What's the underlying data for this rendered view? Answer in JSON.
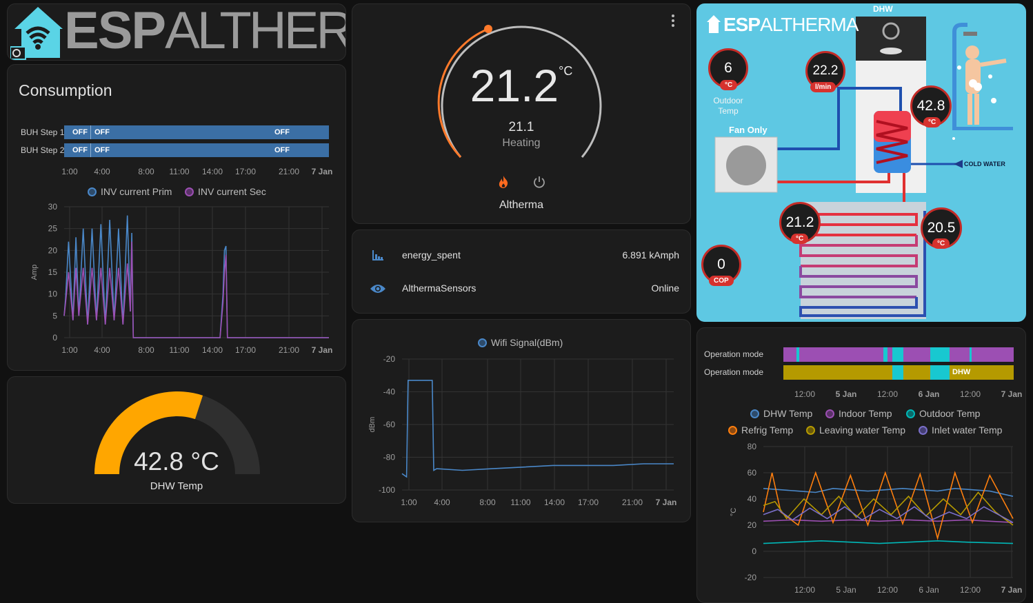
{
  "logo": {
    "text_bold": "ESP",
    "text_light": "ALTHERMA"
  },
  "consumption": {
    "title": "Consumption",
    "timeline": [
      {
        "label": "BUH Step 1",
        "states": [
          "OFF",
          "OFF",
          "OFF"
        ]
      },
      {
        "label": "BUH Step 2",
        "states": [
          "OFF",
          "OFF",
          "OFF"
        ]
      }
    ],
    "timeline_ticks": [
      "1:00",
      "4:00",
      "8:00",
      "11:00",
      "14:00",
      "17:00",
      "21:00",
      "7 Jan"
    ],
    "legend": [
      "INV current Prim",
      "INV current Sec"
    ],
    "colors": {
      "prim": "#4a88c9",
      "sec": "#9c4fb3"
    }
  },
  "thermostat": {
    "current": "21.2",
    "unit": "°C",
    "target": "21.1",
    "action": "Heating",
    "name": "Altherma",
    "menu_icon": "dots-vertical-icon",
    "mode_icons": [
      "fire-icon",
      "power-icon"
    ]
  },
  "entities": [
    {
      "icon": "chart-bar-icon",
      "name": "energy_spent",
      "value": "6.891 kAmph"
    },
    {
      "icon": "eye-icon",
      "name": "AlthermaSensors",
      "value": "Online"
    }
  ],
  "wifi": {
    "legend": "Wifi Signal(dBm)"
  },
  "gauge": {
    "value": "42.8 °C",
    "name": "DHW Temp",
    "fraction": 0.6,
    "color": "#ffa600"
  },
  "schematic": {
    "dhw_label": "DHW",
    "fan_label": "Fan Only",
    "cold_water_label": "COLD WATER",
    "sensors": [
      {
        "value": "6",
        "unit": "°C",
        "caption": "Outdoor Temp"
      },
      {
        "value": "22.2",
        "unit": "l/min",
        "caption": ""
      },
      {
        "value": "42.8",
        "unit": "°C",
        "caption": ""
      },
      {
        "value": "21.2",
        "unit": "°C",
        "caption": ""
      },
      {
        "value": "20.5",
        "unit": "°C",
        "caption": ""
      },
      {
        "value": "0",
        "unit": "COP",
        "caption": ""
      }
    ]
  },
  "temps": {
    "timeline": [
      {
        "label": "Operation mode",
        "state_label": ""
      },
      {
        "label": "Operation mode",
        "state_label": "DHW"
      }
    ],
    "ticks": [
      "12:00",
      "5 Jan",
      "12:00",
      "6 Jan",
      "12:00",
      "7 Jan"
    ],
    "legend": [
      {
        "name": "DHW Temp",
        "color": "#4a88c9"
      },
      {
        "name": "Indoor Temp",
        "color": "#9c4fb3"
      },
      {
        "name": "Outdoor Temp",
        "color": "#00b8b8"
      },
      {
        "name": "Refrig Temp",
        "color": "#ff7f0e"
      },
      {
        "name": "Leaving water Temp",
        "color": "#b59a00"
      },
      {
        "name": "Inlet water Temp",
        "color": "#7a6fc9"
      }
    ]
  },
  "chart_data": [
    {
      "type": "line",
      "title": "",
      "ylabel": "Amp",
      "ylim": [
        0,
        30
      ],
      "x_ticks": [
        "1:00",
        "4:00",
        "8:00",
        "11:00",
        "14:00",
        "17:00",
        "21:00",
        "7 Jan"
      ],
      "y_ticks": [
        0,
        5,
        10,
        15,
        20,
        25,
        30
      ],
      "series": [
        {
          "name": "INV current Prim",
          "x": [
            0,
            0.1,
            0.3,
            0.6,
            0.8,
            1.0,
            1.3,
            1.6,
            1.9,
            2.2,
            2.5,
            2.8,
            3.1,
            3.4,
            3.7,
            4.0,
            4.3,
            4.5,
            4.6,
            4.7,
            10.6,
            10.8,
            10.9,
            11.0,
            11.1,
            18.0
          ],
          "y": [
            5,
            9,
            22,
            4,
            23,
            5,
            25,
            3,
            25,
            4,
            26,
            3,
            27,
            4,
            25,
            3,
            28,
            6,
            24,
            0,
            0,
            10,
            20,
            21,
            0,
            0
          ]
        },
        {
          "name": "INV current Sec",
          "x": [
            0,
            0.1,
            0.3,
            0.6,
            0.8,
            1.0,
            1.3,
            1.6,
            1.9,
            2.2,
            2.5,
            2.8,
            3.1,
            3.4,
            3.7,
            4.0,
            4.3,
            4.5,
            4.6,
            4.7,
            10.6,
            10.8,
            10.9,
            11.0,
            11.1,
            18.0
          ],
          "y": [
            5,
            8,
            15,
            4,
            16,
            5,
            16,
            3,
            16,
            4,
            16,
            3,
            16,
            4,
            16,
            3,
            17,
            6,
            22,
            0,
            0,
            8,
            15,
            19,
            0,
            0
          ]
        }
      ]
    },
    {
      "type": "line",
      "title": "",
      "ylabel": "dBm",
      "ylim": [
        -100,
        -20
      ],
      "x_ticks": [
        "1:00",
        "4:00",
        "8:00",
        "11:00",
        "14:00",
        "17:00",
        "21:00",
        "7 Jan"
      ],
      "y_ticks": [
        -20,
        -40,
        -60,
        -80,
        -100
      ],
      "series": [
        {
          "name": "Wifi Signal(dBm)",
          "x": [
            0,
            0.3,
            0.4,
            2.0,
            2.1,
            2.3,
            4,
            6,
            8,
            10,
            12,
            14,
            16,
            18
          ],
          "y": [
            -90,
            -92,
            -33,
            -33,
            -88,
            -87,
            -88,
            -87,
            -86,
            -85,
            -85,
            -85,
            -84,
            -84
          ]
        }
      ]
    },
    {
      "type": "line",
      "title": "",
      "ylabel": "°C",
      "ylim": [
        -20,
        80
      ],
      "x_ticks": [
        "12:00",
        "5 Jan",
        "12:00",
        "6 Jan",
        "12:00",
        "7 Jan"
      ],
      "y_ticks": [
        80,
        60,
        40,
        20,
        0,
        -20
      ],
      "series": [
        {
          "name": "DHW Temp",
          "x": [
            0,
            6,
            12,
            18,
            24,
            30,
            36,
            42,
            48,
            54,
            60,
            66,
            72,
            78,
            86
          ],
          "y": [
            48,
            47,
            46,
            45,
            48,
            47,
            46,
            47,
            48,
            47,
            46,
            48,
            47,
            46,
            42
          ]
        },
        {
          "name": "Indoor Temp",
          "x": [
            0,
            10,
            20,
            30,
            40,
            50,
            60,
            70,
            86
          ],
          "y": [
            23,
            24,
            23,
            24,
            23,
            24,
            23,
            24,
            22
          ]
        },
        {
          "name": "Outdoor Temp",
          "x": [
            0,
            10,
            20,
            30,
            40,
            50,
            60,
            70,
            86
          ],
          "y": [
            6,
            7,
            8,
            7,
            6,
            7,
            8,
            7,
            6
          ]
        },
        {
          "name": "Refrig Temp",
          "x": [
            0,
            3,
            6,
            12,
            18,
            24,
            30,
            36,
            42,
            48,
            54,
            60,
            66,
            72,
            78,
            86
          ],
          "y": [
            30,
            60,
            30,
            20,
            60,
            22,
            58,
            20,
            60,
            21,
            59,
            10,
            60,
            22,
            58,
            25
          ]
        },
        {
          "name": "Leaving water Temp",
          "x": [
            0,
            4,
            8,
            14,
            20,
            26,
            32,
            38,
            44,
            50,
            56,
            62,
            68,
            74,
            80,
            86
          ],
          "y": [
            35,
            38,
            25,
            40,
            28,
            42,
            26,
            40,
            28,
            42,
            27,
            40,
            28,
            45,
            30,
            20
          ]
        },
        {
          "name": "Inlet water Temp",
          "x": [
            0,
            5,
            10,
            16,
            22,
            28,
            34,
            40,
            46,
            52,
            58,
            64,
            70,
            76,
            86
          ],
          "y": [
            28,
            32,
            24,
            33,
            25,
            34,
            24,
            32,
            25,
            34,
            24,
            30,
            25,
            34,
            22
          ]
        }
      ]
    }
  ]
}
